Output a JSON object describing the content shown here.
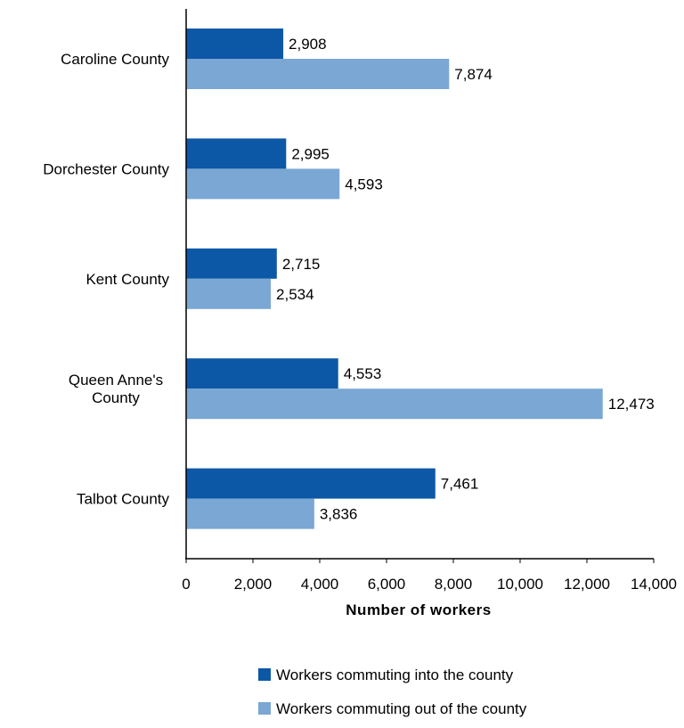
{
  "chart_data": {
    "type": "bar",
    "orientation": "horizontal",
    "categories": [
      [
        "Caroline County"
      ],
      [
        "Dorchester County"
      ],
      [
        "Kent County"
      ],
      [
        "Queen Anne's",
        "County"
      ],
      [
        "Talbot County"
      ]
    ],
    "series": [
      {
        "name": "Workers commuting into the county",
        "color": "#0d58a6",
        "values": [
          2908,
          2995,
          2715,
          4553,
          7461
        ],
        "labels": [
          "2,908",
          "2,995",
          "2,715",
          "4,553",
          "7,461"
        ]
      },
      {
        "name": "Workers commuting out of the county",
        "color": "#7aa7d3",
        "values": [
          7874,
          4593,
          2534,
          12473,
          3836
        ],
        "labels": [
          "7,874",
          "4,593",
          "2,534",
          "12,473",
          "3,836"
        ]
      }
    ],
    "xlabel": "Number of workers",
    "xlim": [
      0,
      14000
    ],
    "xticks": [
      0,
      2000,
      4000,
      6000,
      8000,
      10000,
      12000,
      14000
    ],
    "xtick_labels": [
      "0",
      "2,000",
      "4,000",
      "6,000",
      "8,000",
      "10,000",
      "12,000",
      "14,000"
    ],
    "grid": false,
    "legend_position": "bottom"
  }
}
